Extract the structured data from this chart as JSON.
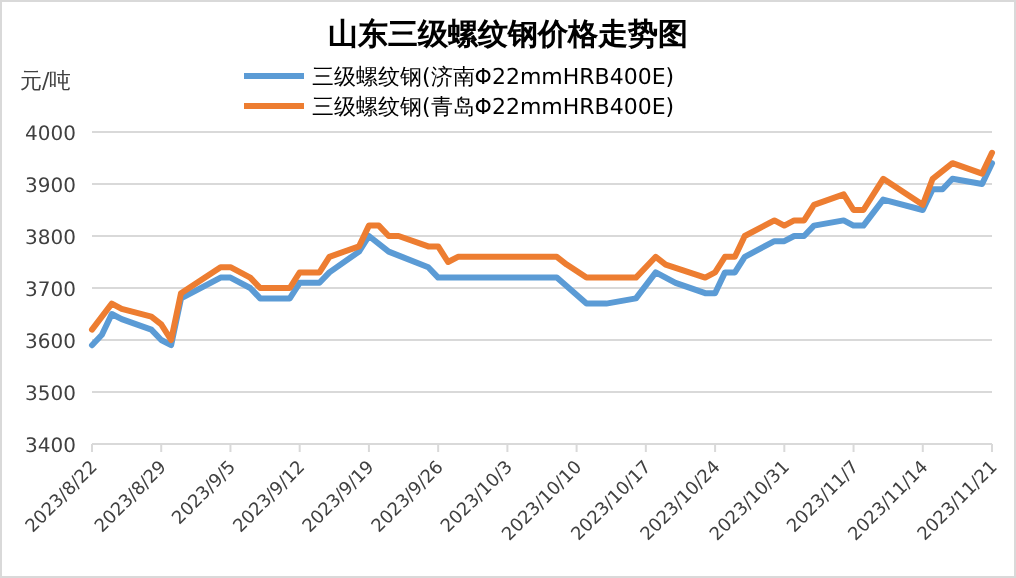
{
  "chart_data": {
    "type": "line",
    "title": "山东三级螺纹钢价格走势图",
    "ylabel": "元/吨",
    "series": [
      {
        "name": "三级螺纹钢(济南Φ22mmHRB400E)",
        "color": "#5b9bd5",
        "x": [
          "2023-08-22",
          "2023-08-23",
          "2023-08-24",
          "2023-08-25",
          "2023-08-28",
          "2023-08-29",
          "2023-08-30",
          "2023-08-31",
          "2023-09-04",
          "2023-09-05",
          "2023-09-07",
          "2023-09-08",
          "2023-09-11",
          "2023-09-12",
          "2023-09-14",
          "2023-09-15",
          "2023-09-18",
          "2023-09-19",
          "2023-09-21",
          "2023-09-25",
          "2023-09-26",
          "2023-10-08",
          "2023-10-11",
          "2023-10-13",
          "2023-10-16",
          "2023-10-18",
          "2023-10-20",
          "2023-10-23",
          "2023-10-24",
          "2023-10-25",
          "2023-10-26",
          "2023-10-27",
          "2023-10-30",
          "2023-10-31",
          "2023-11-01",
          "2023-11-02",
          "2023-11-03",
          "2023-11-06",
          "2023-11-07",
          "2023-11-08",
          "2023-11-10",
          "2023-11-14",
          "2023-11-15",
          "2023-11-16",
          "2023-11-17",
          "2023-11-20",
          "2023-11-21"
        ],
        "values": [
          3590,
          3610,
          3650,
          3640,
          3620,
          3600,
          3590,
          3680,
          3720,
          3720,
          3700,
          3680,
          3680,
          3710,
          3710,
          3730,
          3770,
          3800,
          3770,
          3740,
          3720,
          3720,
          3670,
          3670,
          3680,
          3730,
          3710,
          3690,
          3690,
          3730,
          3730,
          3760,
          3790,
          3790,
          3800,
          3800,
          3820,
          3830,
          3820,
          3820,
          3870,
          3850,
          3890,
          3890,
          3910,
          3900,
          3940
        ]
      },
      {
        "name": "三级螺纹钢(青岛Φ22mmHRB400E)",
        "color": "#ed7d31",
        "x": [
          "2023-08-22",
          "2023-08-24",
          "2023-08-25",
          "2023-08-28",
          "2023-08-29",
          "2023-08-30",
          "2023-08-31",
          "2023-09-04",
          "2023-09-05",
          "2023-09-07",
          "2023-09-08",
          "2023-09-11",
          "2023-09-12",
          "2023-09-14",
          "2023-09-15",
          "2023-09-18",
          "2023-09-19",
          "2023-09-20",
          "2023-09-21",
          "2023-09-22",
          "2023-09-25",
          "2023-09-26",
          "2023-09-27",
          "2023-09-28",
          "2023-10-08",
          "2023-10-09",
          "2023-10-11",
          "2023-10-16",
          "2023-10-18",
          "2023-10-19",
          "2023-10-23",
          "2023-10-24",
          "2023-10-25",
          "2023-10-26",
          "2023-10-27",
          "2023-10-30",
          "2023-10-31",
          "2023-11-01",
          "2023-11-02",
          "2023-11-03",
          "2023-11-06",
          "2023-11-07",
          "2023-11-08",
          "2023-11-10",
          "2023-11-14",
          "2023-11-15",
          "2023-11-17",
          "2023-11-20",
          "2023-11-21"
        ],
        "values": [
          3620,
          3670,
          3660,
          3645,
          3630,
          3600,
          3690,
          3740,
          3740,
          3720,
          3700,
          3700,
          3730,
          3730,
          3760,
          3780,
          3820,
          3820,
          3800,
          3800,
          3780,
          3780,
          3750,
          3760,
          3760,
          3745,
          3720,
          3720,
          3760,
          3745,
          3720,
          3730,
          3760,
          3760,
          3800,
          3830,
          3820,
          3830,
          3830,
          3860,
          3880,
          3850,
          3850,
          3910,
          3860,
          3910,
          3940,
          3920,
          3960
        ]
      }
    ],
    "xlim": [
      "2023-08-22",
      "2023-11-21"
    ],
    "xticks": [
      {
        "value": "2023-08-22",
        "label": "2023/8/22"
      },
      {
        "value": "2023-08-29",
        "label": "2023/8/29"
      },
      {
        "value": "2023-09-05",
        "label": "2023/9/5"
      },
      {
        "value": "2023-09-12",
        "label": "2023/9/12"
      },
      {
        "value": "2023-09-19",
        "label": "2023/9/19"
      },
      {
        "value": "2023-09-26",
        "label": "2023/9/26"
      },
      {
        "value": "2023-10-03",
        "label": "2023/10/3"
      },
      {
        "value": "2023-10-10",
        "label": "2023/10/10"
      },
      {
        "value": "2023-10-17",
        "label": "2023/10/17"
      },
      {
        "value": "2023-10-24",
        "label": "2023/10/24"
      },
      {
        "value": "2023-10-31",
        "label": "2023/10/31"
      },
      {
        "value": "2023-11-07",
        "label": "2023/11/7"
      },
      {
        "value": "2023-11-14",
        "label": "2023/11/14"
      },
      {
        "value": "2023-11-21",
        "label": "2023/11/21"
      }
    ],
    "ylim": [
      3400,
      4000
    ],
    "yticks": [
      3400,
      3500,
      3600,
      3700,
      3800,
      3900,
      4000
    ],
    "grid": "y",
    "legend": "top",
    "marker": "none",
    "line_style": "solid"
  }
}
